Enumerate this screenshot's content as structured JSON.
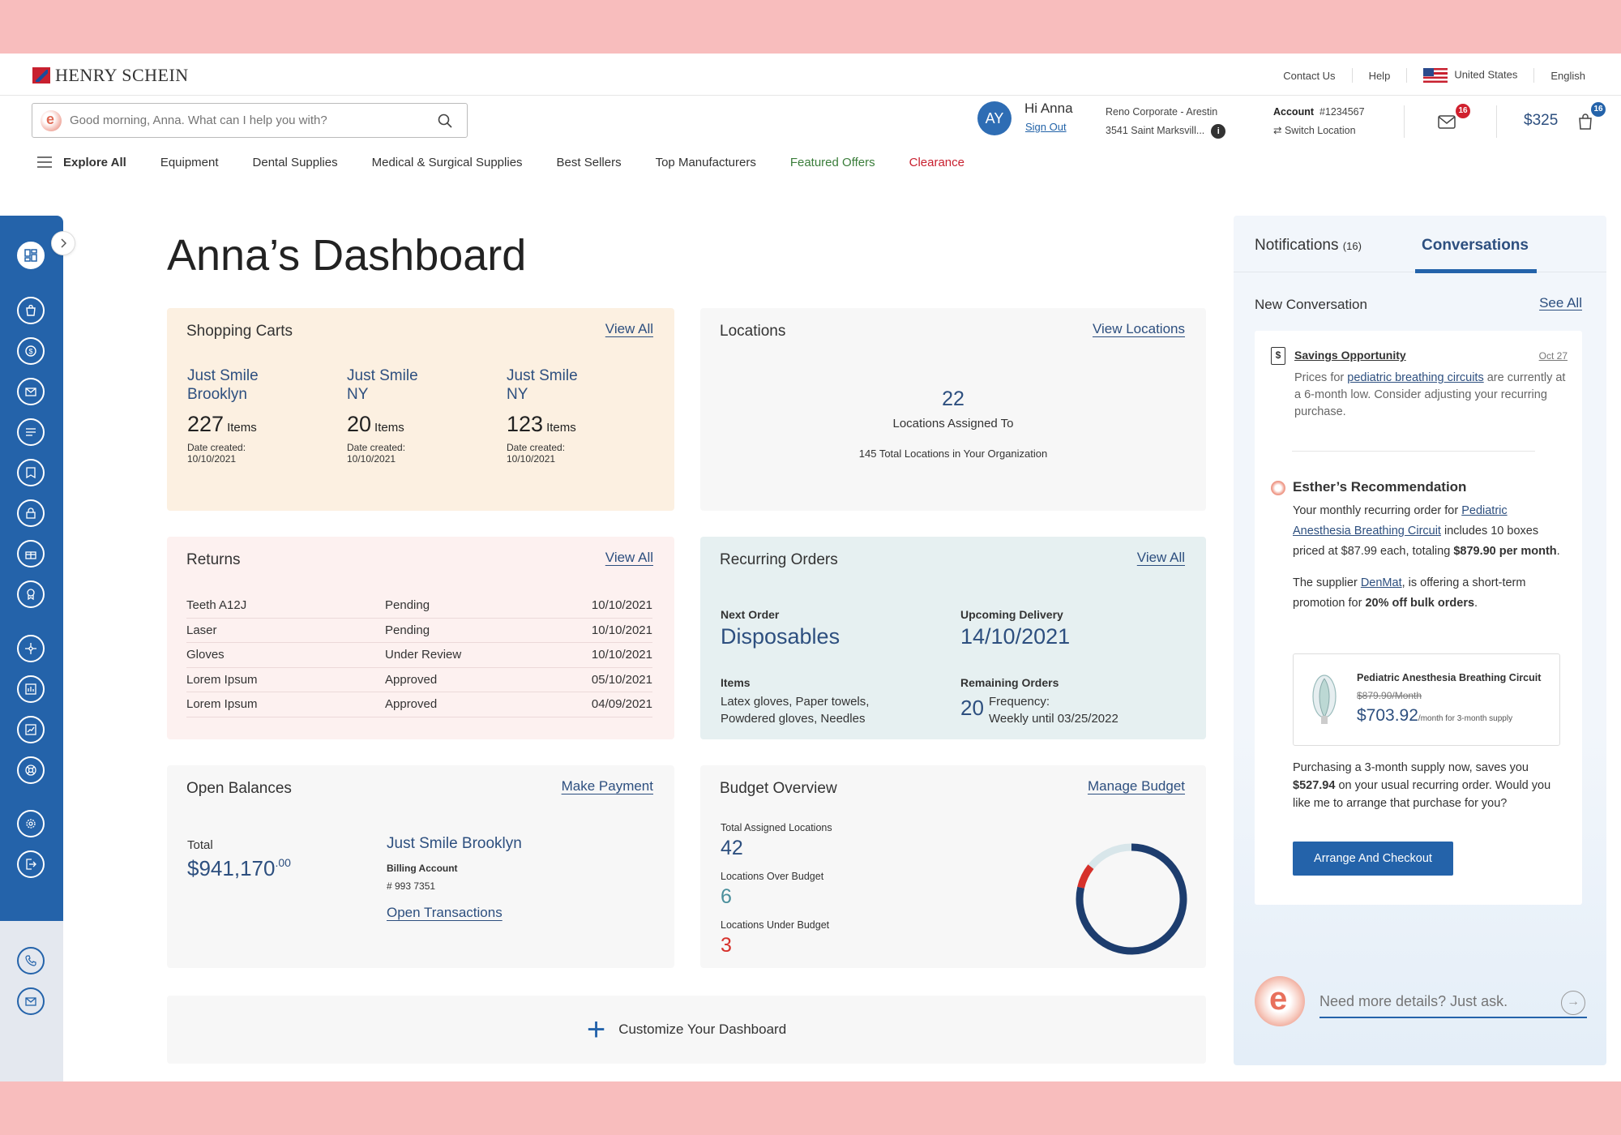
{
  "brand": {
    "logo_text": "HENRY SCHEIN"
  },
  "utility": {
    "contact": "Contact Us",
    "help": "Help",
    "country": "United States",
    "language": "English"
  },
  "search": {
    "placeholder": "Good morning, Anna. What can I help you with?"
  },
  "user": {
    "initials": "AY",
    "greeting": "Hi Anna",
    "sign_out": "Sign Out"
  },
  "org": {
    "line1": "Reno Corporate - Arestin",
    "line2": "3541 Saint Marksvill...",
    "info": "i"
  },
  "account": {
    "label": "Account",
    "number": "#1234567",
    "switch": "Switch Location"
  },
  "mail_badge": "16",
  "cart_total": "$325",
  "cart_badge": "16",
  "nav": {
    "explore": "Explore All",
    "items": [
      "Equipment",
      "Dental Supplies",
      "Medical & Surgical Supplies",
      "Best Sellers",
      "Top Manufacturers"
    ],
    "featured": "Featured Offers",
    "clearance": "Clearance"
  },
  "sidebar_icons": [
    "dashboard-icon",
    "bag-icon",
    "dollar-icon",
    "mail-icon",
    "list-icon",
    "bookmark-icon",
    "lock-icon",
    "gift-icon",
    "award-icon",
    "network-icon",
    "report-icon",
    "chart-icon",
    "support-icon",
    "settings-icon",
    "logout-icon",
    "phone-icon",
    "envelope-icon"
  ],
  "dashboard_title": "Anna’s Dashboard",
  "carts": {
    "title": "Shopping Carts",
    "view_all": "View All",
    "items": [
      {
        "name1": "Just Smile",
        "name2": "Brooklyn",
        "count": "227",
        "unit": "Items",
        "date_label": "Date created:",
        "date": "10/10/2021"
      },
      {
        "name1": "Just Smile",
        "name2": "NY",
        "count": "20",
        "unit": "Items",
        "date_label": "Date created:",
        "date": "10/10/2021"
      },
      {
        "name1": "Just Smile",
        "name2": "NY",
        "count": "123",
        "unit": "Items",
        "date_label": "Date created:",
        "date": "10/10/2021"
      }
    ]
  },
  "locations": {
    "title": "Locations",
    "link": "View Locations",
    "count": "22",
    "label": "Locations Assigned To",
    "total": "145 Total Locations in Your Organization"
  },
  "returns": {
    "title": "Returns",
    "view_all": "View All",
    "rows": [
      {
        "item": "Teeth A12J",
        "status": "Pending",
        "date": "10/10/2021"
      },
      {
        "item": "Laser",
        "status": "Pending",
        "date": "10/10/2021"
      },
      {
        "item": "Gloves",
        "status": "Under Review",
        "date": "10/10/2021"
      },
      {
        "item": "Lorem Ipsum",
        "status": "Approved",
        "date": "05/10/2021"
      },
      {
        "item": "Lorem Ipsum",
        "status": "Approved",
        "date": "04/09/2021"
      }
    ]
  },
  "recurring": {
    "title": "Recurring Orders",
    "view_all": "View All",
    "next_label": "Next Order",
    "next_value": "Disposables",
    "delivery_label": "Upcoming Delivery",
    "delivery_value": "14/10/2021",
    "items_label": "Items",
    "items_line1": "Latex gloves, Paper towels,",
    "items_line2": "Powdered gloves, Needles",
    "remaining_label": "Remaining Orders",
    "remaining_value": "20",
    "freq_line1": "Frequency:",
    "freq_line2": "Weekly until 03/25/2022"
  },
  "balances": {
    "title": "Open Balances",
    "link": "Make Payment",
    "total_label": "Total",
    "total_value": "$941,170",
    "total_cents": ".00",
    "account_name": "Just Smile Brooklyn",
    "billing_label": "Billing Account",
    "billing_number": "# 993 7351",
    "transactions": "Open Transactions"
  },
  "budget": {
    "title": "Budget Overview",
    "link": "Manage Budget",
    "assigned_label": "Total Assigned Locations",
    "assigned_value": "42",
    "over_label": "Locations Over Budget",
    "over_value": "6",
    "under_label": "Locations Under Budget",
    "under_value": "3",
    "colors": {
      "navy": "#1d3d6e",
      "teal": "#4a8f9c",
      "red": "#d6312b",
      "track": "#d8e6ea"
    }
  },
  "customize": "Customize Your Dashboard",
  "panel": {
    "tab_notifications": "Notifications",
    "notif_count": "(16)",
    "tab_conversations": "Conversations",
    "new_conv": "New Conversation",
    "see_all": "See All",
    "savings": {
      "title": "Savings Opportunity",
      "date": "Oct 27",
      "pre": "Prices for ",
      "link": "pediatric breathing circuits",
      "post": " are currently at a 6-month low. Consider adjusting your recurring purchase."
    },
    "esther": {
      "title": "Esther’s Recommendation",
      "p1_a": "Your monthly recurring order for ",
      "p1_link": "Pediatric Anesthesia Breathing Circuit",
      "p1_b": " includes 10 boxes priced at $87.99 each, totaling ",
      "p1_bold": "$879.90 per month",
      "p1_c": ".",
      "p2_a": "The supplier ",
      "p2_link": "DenMat",
      "p2_b": ", is offering a short-term promotion for ",
      "p2_bold": "20% off bulk orders",
      "p2_c": ".",
      "product_name": "Pediatric Anesthesia Breathing Circuit",
      "product_old": "$879.90/Month",
      "product_price": "$703.92",
      "product_unit": "/month for 3-month supply",
      "p3_a": "Purchasing a 3-month supply now, saves you ",
      "p3_bold": "$527.94",
      "p3_b": " on your usual recurring order. Would you like me to arrange that purchase for you?",
      "button": "Arrange And Checkout"
    },
    "ask_placeholder": "Need more details? Just ask."
  }
}
